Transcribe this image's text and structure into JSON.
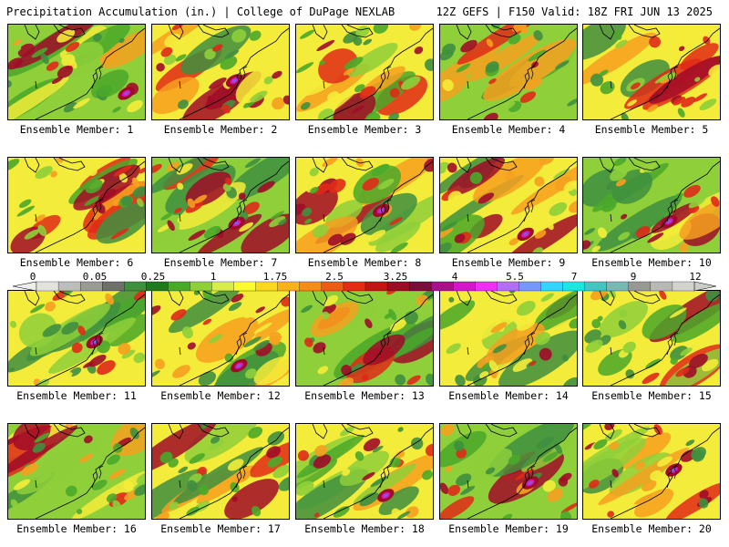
{
  "header": {
    "left": "Precipitation Accumulation (in.) | College of DuPage NEXLAB",
    "right": "12Z GEFS | F150 Valid: 18Z FRI JUN 13 2025"
  },
  "members": [
    "Ensemble Member: 1",
    "Ensemble Member: 2",
    "Ensemble Member: 3",
    "Ensemble Member: 4",
    "Ensemble Member: 5",
    "Ensemble Member: 6",
    "Ensemble Member: 7",
    "Ensemble Member: 8",
    "Ensemble Member: 9",
    "Ensemble Member: 10",
    "Ensemble Member: 11",
    "Ensemble Member: 12",
    "Ensemble Member: 13",
    "Ensemble Member: 14",
    "Ensemble Member: 15",
    "Ensemble Member: 16",
    "Ensemble Member: 17",
    "Ensemble Member: 18",
    "Ensemble Member: 19",
    "Ensemble Member: 20"
  ],
  "colorbar": {
    "tick_labels": [
      "0",
      "0.05",
      "0.25",
      "1",
      "1.75",
      "2.5",
      "3.25",
      "4",
      "5.5",
      "7",
      "9",
      "12"
    ],
    "colors": [
      "#e2e2e2",
      "#bdbdbd",
      "#9a9a9a",
      "#6f6f6f",
      "#3f8f3f",
      "#1f7a1f",
      "#4aa82a",
      "#8ecf3a",
      "#d8ec4a",
      "#fbfb2e",
      "#fbd81e",
      "#fbb21a",
      "#f88c18",
      "#f05a14",
      "#e82a14",
      "#c41414",
      "#9c0c24",
      "#7c0c3c",
      "#a8108c",
      "#d418c4",
      "#f030f0",
      "#b070f0",
      "#7898f8",
      "#30d8f8",
      "#18e8e0",
      "#40c8c0",
      "#78b8b8",
      "#989898",
      "#b8b8b8",
      "#d2d2d2"
    ]
  },
  "legend_colors": {
    "dark_green": "#3f8f3f",
    "green": "#4aa82a",
    "light_green": "#8ecf3a",
    "yellow": "#f4ec3a",
    "orange": "#f6a020",
    "red": "#e02a18",
    "dark_red": "#a00c28",
    "magenta": "#d418c4",
    "purple": "#8060d0"
  }
}
